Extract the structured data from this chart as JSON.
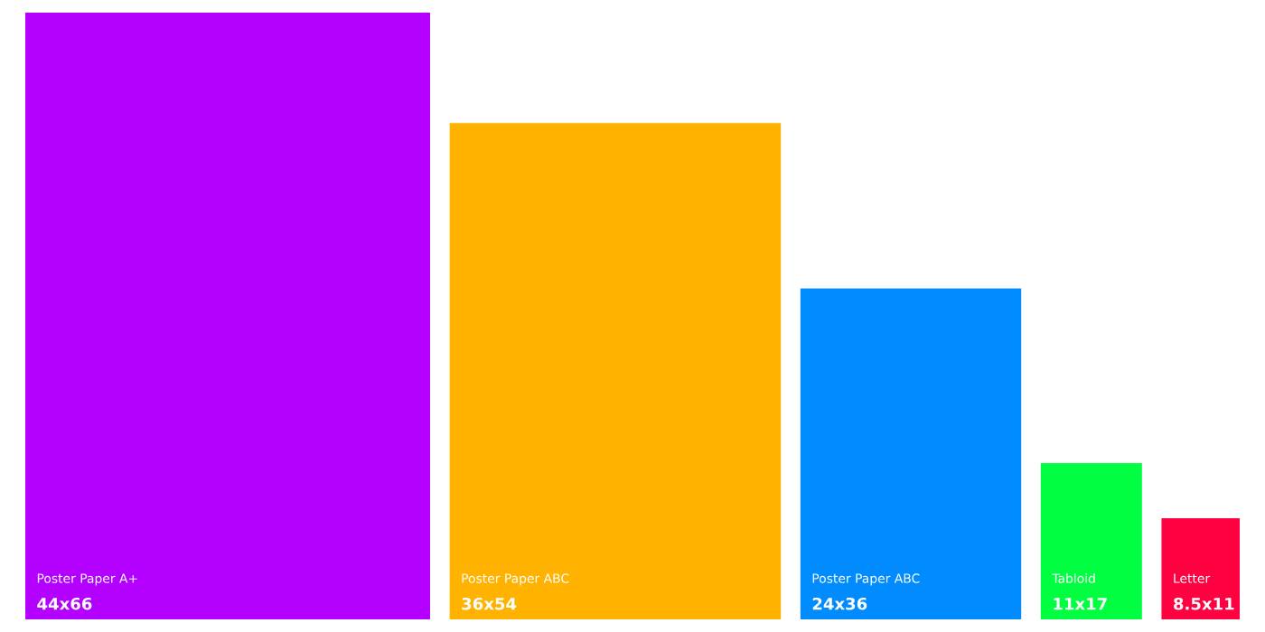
{
  "chart_data": {
    "type": "bar",
    "categories": [
      "Poster Paper A+",
      "Poster Paper ABC",
      "Poster Paper ABC",
      "Tabloid",
      "Letter"
    ],
    "values": [
      66,
      54,
      36,
      17,
      11
    ],
    "value_labels": [
      "44x66",
      "36x54",
      "24x36",
      "11x17",
      "8.5x11"
    ],
    "colors": [
      "#b300ff",
      "#ffb300",
      "#008cff",
      "#00ff40",
      "#ff0040"
    ]
  }
}
